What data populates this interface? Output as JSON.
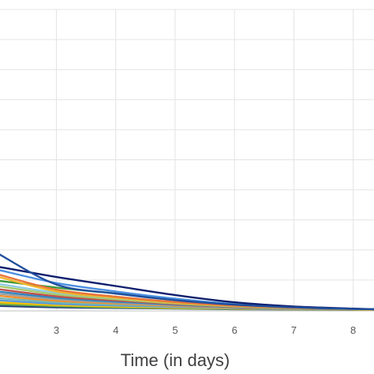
{
  "chart_data": {
    "type": "line",
    "xlabel": "Time (in days)",
    "ylabel": "",
    "xlim": [
      2.05,
      8.35
    ],
    "ylim": [
      0,
      1.0
    ],
    "x_ticks": [
      3,
      4,
      5,
      6,
      7,
      8
    ],
    "y_grid": [
      0.1,
      0.2,
      0.3,
      0.4,
      0.5,
      0.6,
      0.7,
      0.8,
      0.9,
      1.0
    ],
    "grid": true,
    "legend": "none",
    "series": [
      {
        "color": "#1f4e9c",
        "points": [
          [
            2.0,
            0.19
          ],
          [
            3,
            0.085
          ],
          [
            4,
            0.055
          ],
          [
            5,
            0.033
          ],
          [
            6,
            0.018
          ],
          [
            7,
            0.009
          ],
          [
            8,
            0.004
          ],
          [
            8.35,
            0.003
          ]
        ]
      },
      {
        "color": "#0e1f6e",
        "points": [
          [
            2.0,
            0.145
          ],
          [
            3,
            0.11
          ],
          [
            4,
            0.08
          ],
          [
            5,
            0.05
          ],
          [
            6,
            0.026
          ],
          [
            7,
            0.012
          ],
          [
            8,
            0.005
          ],
          [
            8.35,
            0.003
          ]
        ]
      },
      {
        "color": "#4a8fe0",
        "points": [
          [
            2.0,
            0.135
          ],
          [
            3,
            0.09
          ],
          [
            4,
            0.062
          ],
          [
            5,
            0.038
          ],
          [
            6,
            0.02
          ],
          [
            7,
            0.01
          ],
          [
            8,
            0.004
          ],
          [
            8.35,
            0.003
          ]
        ]
      },
      {
        "color": "#e8743b",
        "points": [
          [
            2.0,
            0.12
          ],
          [
            3,
            0.068
          ],
          [
            4,
            0.045
          ],
          [
            5,
            0.027
          ],
          [
            6,
            0.015
          ],
          [
            7,
            0.008
          ],
          [
            8,
            0.004
          ],
          [
            8.35,
            0.003
          ]
        ]
      },
      {
        "color": "#f0b429",
        "points": [
          [
            2.0,
            0.112
          ],
          [
            3,
            0.062
          ],
          [
            4,
            0.041
          ],
          [
            5,
            0.025
          ],
          [
            6,
            0.014
          ],
          [
            7,
            0.007
          ],
          [
            8,
            0.003
          ],
          [
            8.35,
            0.002
          ]
        ]
      },
      {
        "color": "#3c9a3c",
        "points": [
          [
            2.0,
            0.098
          ],
          [
            3,
            0.075
          ],
          [
            4,
            0.055
          ],
          [
            5,
            0.036
          ],
          [
            6,
            0.02
          ],
          [
            7,
            0.01
          ],
          [
            8,
            0.004
          ],
          [
            8.35,
            0.003
          ]
        ]
      },
      {
        "color": "#8ecae6",
        "points": [
          [
            2.0,
            0.088
          ],
          [
            3,
            0.058
          ],
          [
            4,
            0.04
          ],
          [
            5,
            0.025
          ],
          [
            6,
            0.014
          ],
          [
            7,
            0.007
          ],
          [
            8,
            0.003
          ],
          [
            8.35,
            0.002
          ]
        ]
      },
      {
        "color": "#a5c96a",
        "points": [
          [
            2.0,
            0.08
          ],
          [
            3,
            0.052
          ],
          [
            4,
            0.036
          ],
          [
            5,
            0.022
          ],
          [
            6,
            0.012
          ],
          [
            7,
            0.006
          ],
          [
            8,
            0.003
          ],
          [
            8.35,
            0.002
          ]
        ]
      },
      {
        "color": "#c0504d",
        "points": [
          [
            2.0,
            0.07
          ],
          [
            3,
            0.046
          ],
          [
            4,
            0.032
          ],
          [
            5,
            0.02
          ],
          [
            6,
            0.011
          ],
          [
            7,
            0.006
          ],
          [
            8,
            0.003
          ],
          [
            8.35,
            0.002
          ]
        ]
      },
      {
        "color": "#2e86c1",
        "points": [
          [
            2.0,
            0.062
          ],
          [
            3,
            0.041
          ],
          [
            4,
            0.028
          ],
          [
            5,
            0.018
          ],
          [
            6,
            0.01
          ],
          [
            7,
            0.005
          ],
          [
            8,
            0.002
          ],
          [
            8.35,
            0.002
          ]
        ]
      },
      {
        "color": "#9e9e9e",
        "points": [
          [
            2.0,
            0.055
          ],
          [
            3,
            0.036
          ],
          [
            4,
            0.025
          ],
          [
            5,
            0.016
          ],
          [
            6,
            0.009
          ],
          [
            7,
            0.005
          ],
          [
            8,
            0.002
          ],
          [
            8.35,
            0.002
          ]
        ]
      },
      {
        "color": "#f28e2b",
        "points": [
          [
            2.0,
            0.048
          ],
          [
            3,
            0.031
          ],
          [
            4,
            0.022
          ],
          [
            5,
            0.014
          ],
          [
            6,
            0.008
          ],
          [
            7,
            0.004
          ],
          [
            8,
            0.002
          ],
          [
            8.35,
            0.001
          ]
        ]
      },
      {
        "color": "#76b7b2",
        "points": [
          [
            2.0,
            0.04
          ],
          [
            3,
            0.026
          ],
          [
            4,
            0.018
          ],
          [
            5,
            0.012
          ],
          [
            6,
            0.007
          ],
          [
            7,
            0.004
          ],
          [
            8,
            0.002
          ],
          [
            8.35,
            0.001
          ]
        ]
      },
      {
        "color": "#5b9bd5",
        "points": [
          [
            2.0,
            0.033
          ],
          [
            3,
            0.021
          ],
          [
            4,
            0.015
          ],
          [
            5,
            0.01
          ],
          [
            6,
            0.006
          ],
          [
            7,
            0.003
          ],
          [
            8,
            0.002
          ],
          [
            8.35,
            0.001
          ]
        ]
      },
      {
        "color": "#ffc000",
        "points": [
          [
            2.0,
            0.026
          ],
          [
            3,
            0.017
          ],
          [
            4,
            0.012
          ],
          [
            5,
            0.008
          ],
          [
            6,
            0.005
          ],
          [
            7,
            0.003
          ],
          [
            8,
            0.001
          ],
          [
            8.35,
            0.001
          ]
        ]
      },
      {
        "color": "#70ad47",
        "points": [
          [
            2.0,
            0.02
          ],
          [
            3,
            0.013
          ],
          [
            4,
            0.009
          ],
          [
            5,
            0.006
          ],
          [
            6,
            0.004
          ],
          [
            7,
            0.002
          ],
          [
            8,
            0.001
          ],
          [
            8.35,
            0.001
          ]
        ]
      },
      {
        "color": "#264478",
        "points": [
          [
            2.0,
            0.014
          ],
          [
            3,
            0.009
          ],
          [
            4,
            0.007
          ],
          [
            5,
            0.005
          ],
          [
            6,
            0.003
          ],
          [
            7,
            0.002
          ],
          [
            8,
            0.001
          ],
          [
            8.35,
            0.001
          ]
        ]
      }
    ]
  }
}
